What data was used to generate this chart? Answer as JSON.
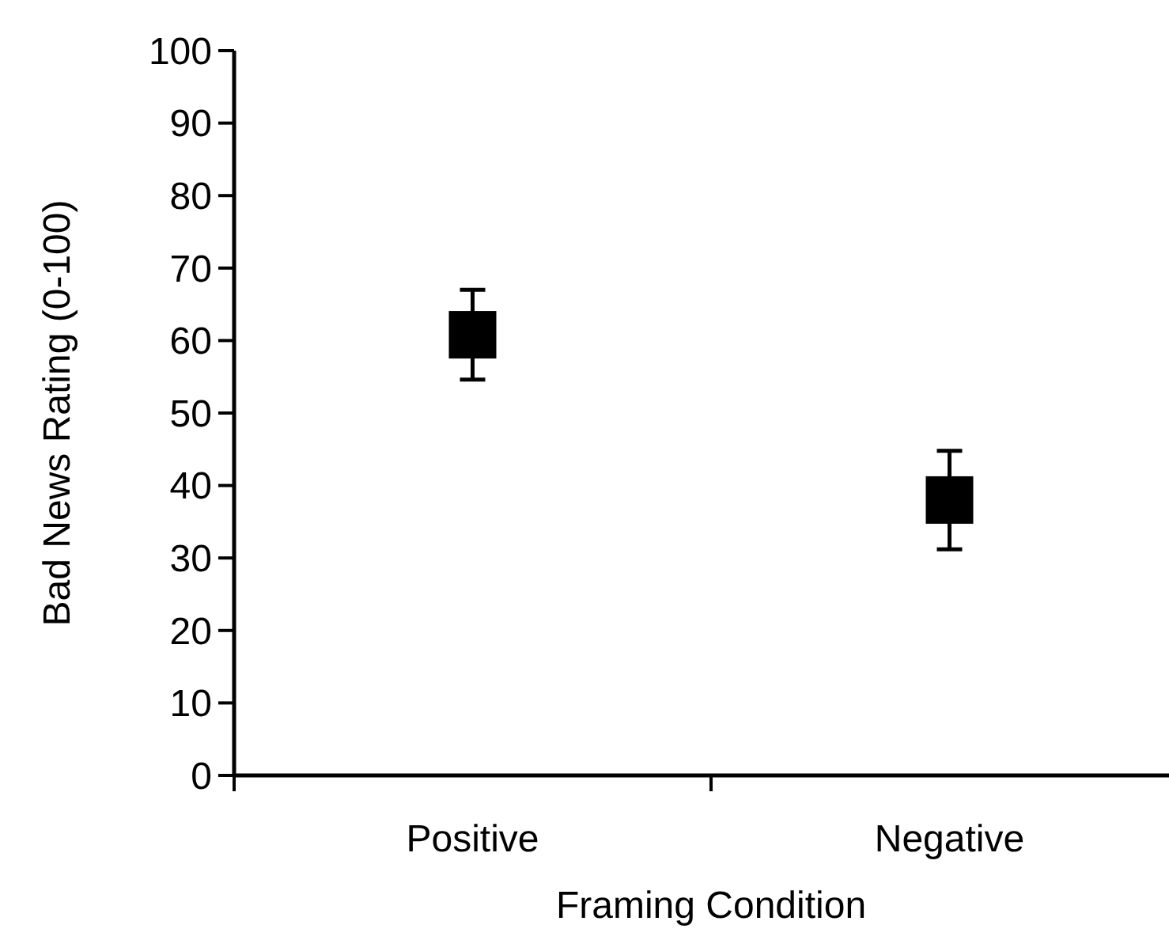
{
  "chart_data": {
    "type": "scatter",
    "categories": [
      "Positive",
      "Negative"
    ],
    "xlabel": "Framing Condition",
    "ylabel": "Bad News Rating (0-100)",
    "ylim": [
      0,
      100
    ],
    "yticks": [
      0,
      10,
      20,
      30,
      40,
      50,
      60,
      70,
      80,
      90,
      100
    ],
    "marker": "square",
    "series": [
      {
        "color": "#000000",
        "values": [
          60.8,
          38
        ],
        "errors": [
          6.2,
          6.8
        ]
      }
    ]
  }
}
